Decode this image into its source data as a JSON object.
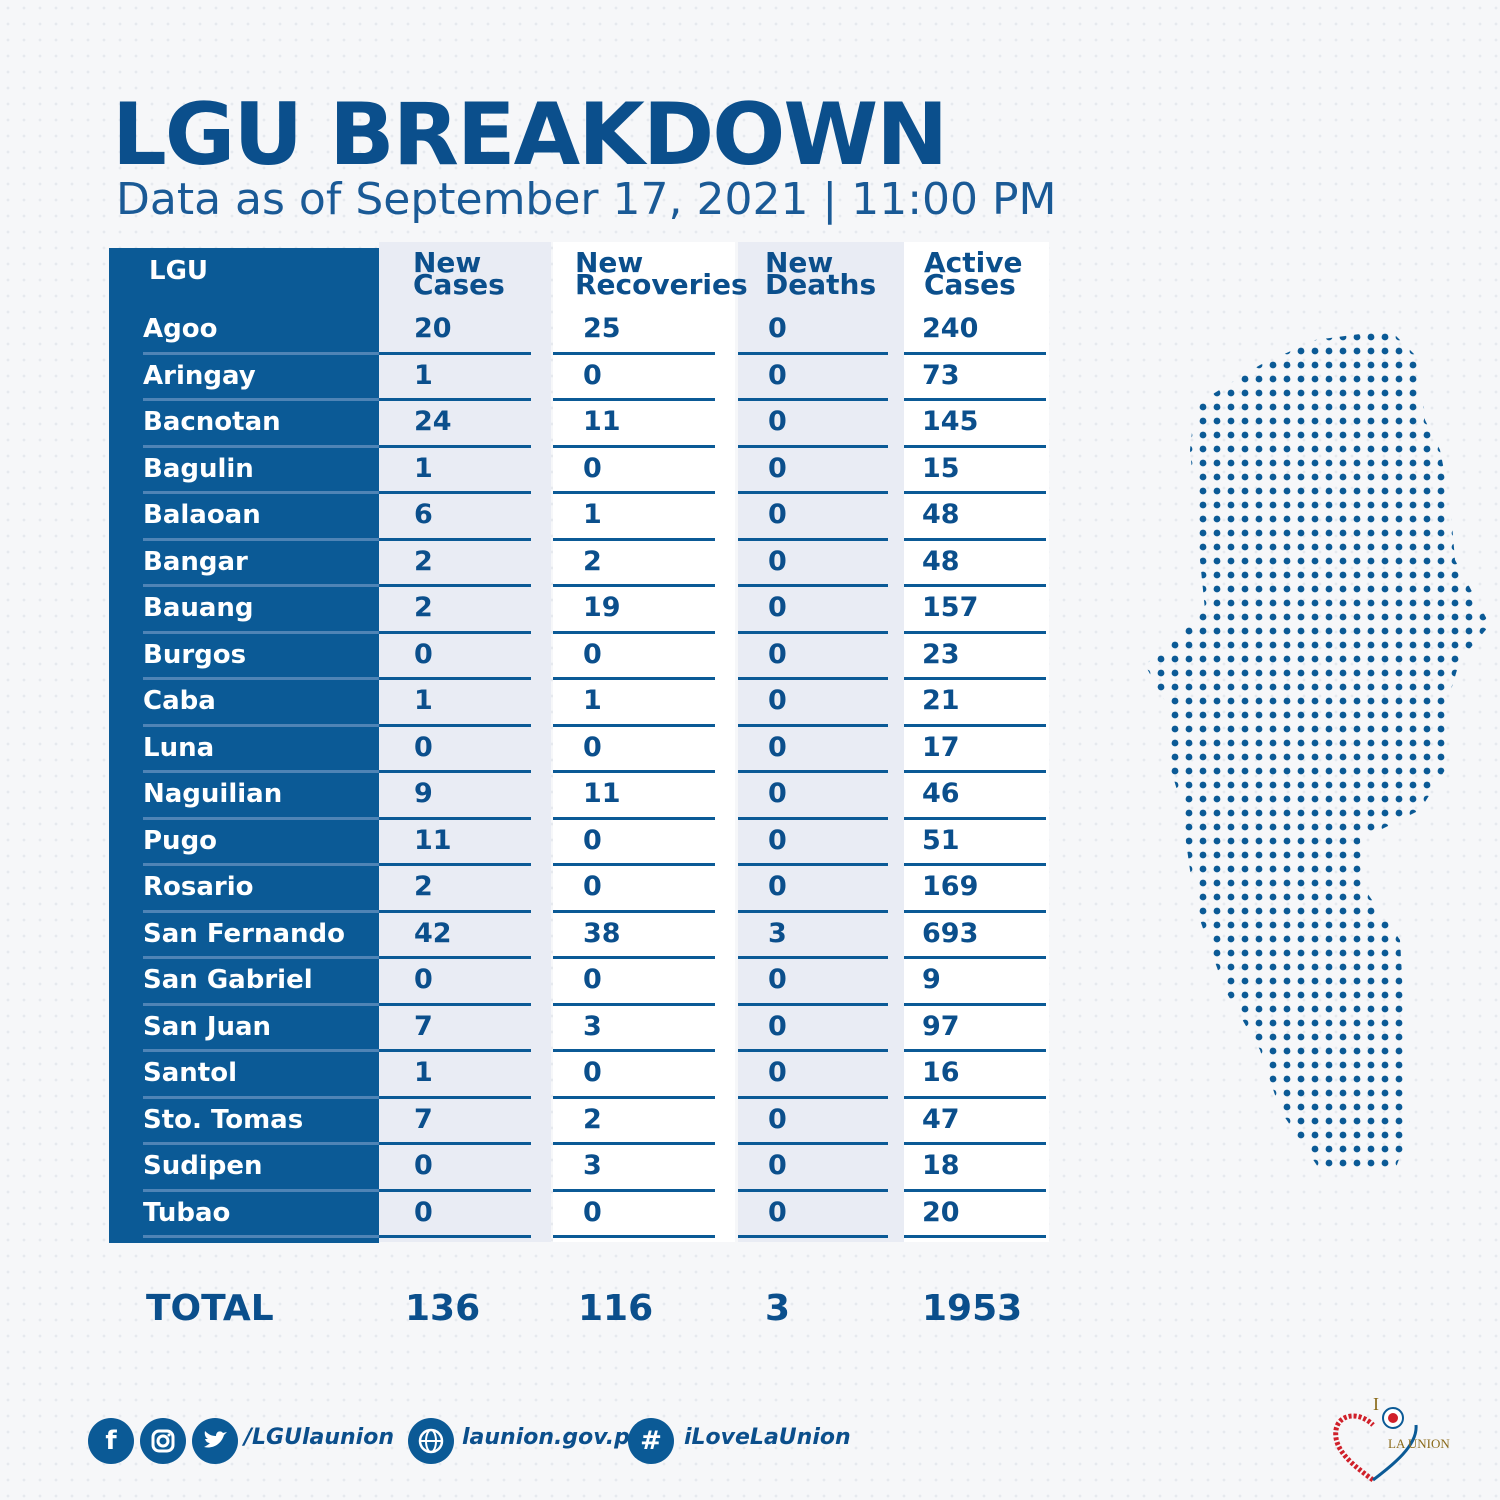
{
  "header": {
    "title": "LGU BREAKDOWN",
    "subtitle": "Data as of September 17, 2021 | 11:00 PM"
  },
  "table": {
    "columns": {
      "lgu": "LGU",
      "new_cases": [
        "New",
        "Cases"
      ],
      "new_recoveries": [
        "New",
        "Recoveries"
      ],
      "new_deaths": [
        "New",
        "Deaths"
      ],
      "active_cases": [
        "Active",
        "Cases"
      ]
    },
    "rows": [
      {
        "lgu": "Agoo",
        "new_cases": "20",
        "new_recoveries": "25",
        "new_deaths": "0",
        "active_cases": "240"
      },
      {
        "lgu": "Aringay",
        "new_cases": "1",
        "new_recoveries": "0",
        "new_deaths": "0",
        "active_cases": "73"
      },
      {
        "lgu": "Bacnotan",
        "new_cases": "24",
        "new_recoveries": "11",
        "new_deaths": "0",
        "active_cases": "145"
      },
      {
        "lgu": "Bagulin",
        "new_cases": "1",
        "new_recoveries": "0",
        "new_deaths": "0",
        "active_cases": "15"
      },
      {
        "lgu": "Balaoan",
        "new_cases": "6",
        "new_recoveries": "1",
        "new_deaths": "0",
        "active_cases": "48"
      },
      {
        "lgu": "Bangar",
        "new_cases": "2",
        "new_recoveries": "2",
        "new_deaths": "0",
        "active_cases": "48"
      },
      {
        "lgu": "Bauang",
        "new_cases": "2",
        "new_recoveries": "19",
        "new_deaths": "0",
        "active_cases": "157"
      },
      {
        "lgu": "Burgos",
        "new_cases": "0",
        "new_recoveries": "0",
        "new_deaths": "0",
        "active_cases": "23"
      },
      {
        "lgu": "Caba",
        "new_cases": "1",
        "new_recoveries": "1",
        "new_deaths": "0",
        "active_cases": "21"
      },
      {
        "lgu": "Luna",
        "new_cases": "0",
        "new_recoveries": "0",
        "new_deaths": "0",
        "active_cases": "17"
      },
      {
        "lgu": "Naguilian",
        "new_cases": "9",
        "new_recoveries": "11",
        "new_deaths": "0",
        "active_cases": "46"
      },
      {
        "lgu": "Pugo",
        "new_cases": "11",
        "new_recoveries": "0",
        "new_deaths": "0",
        "active_cases": "51"
      },
      {
        "lgu": "Rosario",
        "new_cases": "2",
        "new_recoveries": "0",
        "new_deaths": "0",
        "active_cases": "169"
      },
      {
        "lgu": "San Fernando",
        "new_cases": "42",
        "new_recoveries": "38",
        "new_deaths": "3",
        "active_cases": "693"
      },
      {
        "lgu": "San Gabriel",
        "new_cases": "0",
        "new_recoveries": "0",
        "new_deaths": "0",
        "active_cases": "9"
      },
      {
        "lgu": "San Juan",
        "new_cases": "7",
        "new_recoveries": "3",
        "new_deaths": "0",
        "active_cases": "97"
      },
      {
        "lgu": "Santol",
        "new_cases": "1",
        "new_recoveries": "0",
        "new_deaths": "0",
        "active_cases": "16"
      },
      {
        "lgu": "Sto. Tomas",
        "new_cases": "7",
        "new_recoveries": "2",
        "new_deaths": "0",
        "active_cases": "47"
      },
      {
        "lgu": "Sudipen",
        "new_cases": "0",
        "new_recoveries": "3",
        "new_deaths": "0",
        "active_cases": "18"
      },
      {
        "lgu": "Tubao",
        "new_cases": "0",
        "new_recoveries": "0",
        "new_deaths": "0",
        "active_cases": "20"
      }
    ],
    "total": {
      "label": "TOTAL",
      "new_cases": "136",
      "new_recoveries": "116",
      "new_deaths": "3",
      "active_cases": "1953"
    }
  },
  "footer": {
    "social_handle": "/LGUlaunion",
    "website": "launion.gov.ph",
    "hashtag": "iLoveLaUnion",
    "icons": [
      "facebook-icon",
      "instagram-icon",
      "twitter-icon",
      "globe-icon",
      "hashtag-icon"
    ]
  },
  "logo": {
    "text_i": "I",
    "text_name": "LA UNION"
  },
  "colors": {
    "primary": "#0b5a96",
    "text": "#0b4f8c",
    "alt_column": "#e9ecf4",
    "background": "#f6f7f9",
    "logo_red": "#d0202a"
  }
}
